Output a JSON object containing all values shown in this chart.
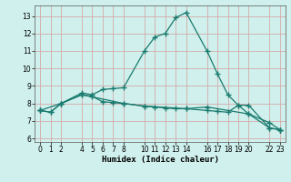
{
  "xlabel": "Humidex (Indice chaleur)",
  "bg_color": "#cff0ec",
  "grid_color": "#d4aaaa",
  "line_color": "#1a7a6e",
  "line1_x": [
    0,
    1,
    2,
    4,
    5,
    6,
    7,
    8,
    10,
    11,
    12,
    13,
    14,
    16,
    17,
    18,
    19,
    20,
    22,
    23
  ],
  "line1_y": [
    7.6,
    7.5,
    8.0,
    8.6,
    8.5,
    8.8,
    8.85,
    8.9,
    11.0,
    11.8,
    12.0,
    12.9,
    13.2,
    11.0,
    9.7,
    8.5,
    7.9,
    7.9,
    6.6,
    6.5
  ],
  "line2_x": [
    0,
    1,
    2,
    4,
    5,
    6,
    7,
    8,
    10,
    11,
    12,
    13,
    14,
    16,
    17,
    18,
    19,
    20,
    22,
    23
  ],
  "line2_y": [
    7.6,
    7.5,
    8.0,
    8.5,
    8.4,
    8.1,
    8.05,
    8.0,
    7.85,
    7.8,
    7.75,
    7.7,
    7.7,
    7.6,
    7.55,
    7.5,
    7.9,
    7.4,
    6.9,
    6.5
  ],
  "line3_x": [
    0,
    2,
    4,
    8,
    10,
    14,
    16,
    20,
    22,
    23
  ],
  "line3_y": [
    7.6,
    8.0,
    8.5,
    8.0,
    7.85,
    7.7,
    7.8,
    7.4,
    6.6,
    6.5
  ],
  "xlim": [
    -0.5,
    23.5
  ],
  "ylim": [
    5.8,
    13.6
  ],
  "yticks": [
    6,
    7,
    8,
    9,
    10,
    11,
    12,
    13
  ],
  "xticks": [
    0,
    1,
    2,
    4,
    5,
    6,
    7,
    8,
    10,
    11,
    12,
    13,
    14,
    16,
    17,
    18,
    19,
    20,
    22,
    23
  ]
}
